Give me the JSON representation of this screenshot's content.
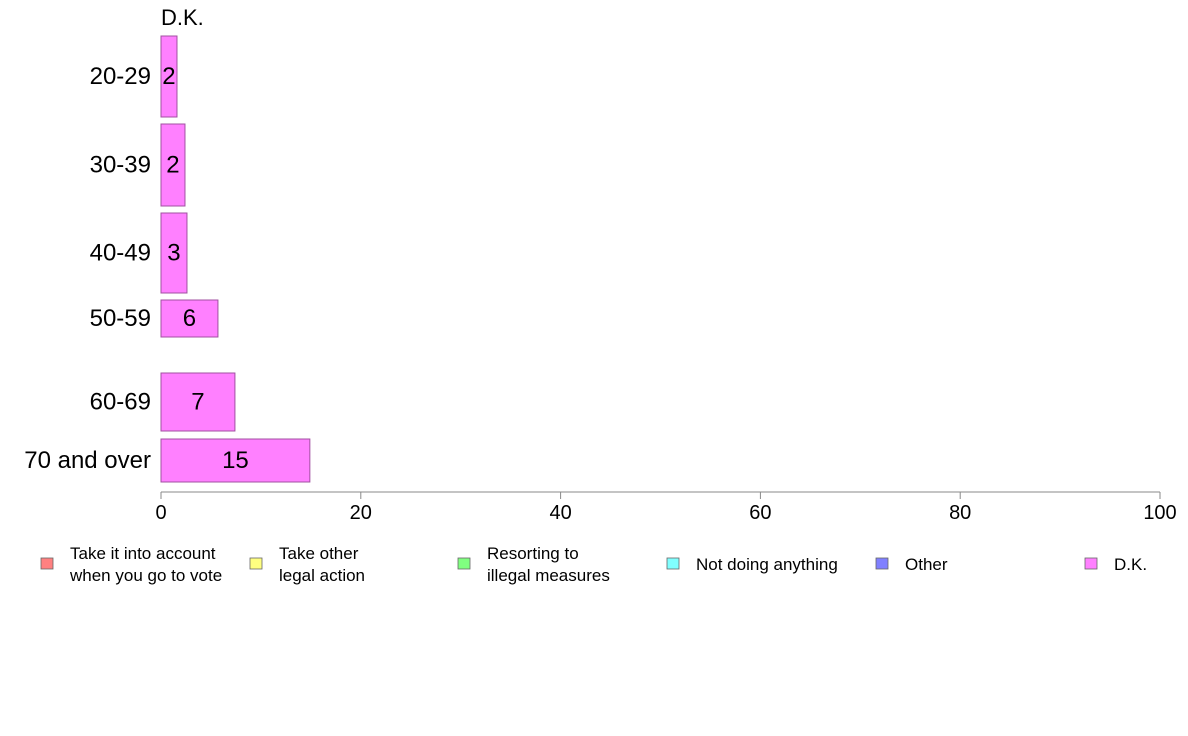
{
  "chart_data": {
    "type": "bar",
    "orientation": "horizontal",
    "title": "D.K.",
    "categories": [
      "20-29",
      "30-39",
      "40-49",
      "50-59",
      "60-69",
      "70 and over"
    ],
    "series": [
      {
        "name": "D.K.",
        "values": [
          1.6,
          2.4,
          2.6,
          5.7,
          7.4,
          14.9
        ],
        "labels": [
          "2",
          "2",
          "3",
          "6",
          "7",
          "15"
        ],
        "color": "#ff80ff"
      }
    ],
    "xlim": [
      0,
      100
    ],
    "x_ticks": [
      "0",
      "20",
      "40",
      "60",
      "80",
      "100"
    ],
    "grid": false,
    "legend": {
      "position": "bottom",
      "items": [
        {
          "lines": [
            "Take it into account",
            "when you go to vote"
          ],
          "color": "#ff8080"
        },
        {
          "lines": [
            "Take other",
            "legal action"
          ],
          "color": "#ffff80"
        },
        {
          "lines": [
            "Resorting to",
            "illegal measures"
          ],
          "color": "#80ff80"
        },
        {
          "lines": [
            "Not doing anything"
          ],
          "color": "#80ffff"
        },
        {
          "lines": [
            "Other"
          ],
          "color": "#8080ff"
        },
        {
          "lines": [
            "D.K."
          ],
          "color": "#ff80ff"
        }
      ]
    },
    "bar_border_color": "#a050a0",
    "axis_color": "#888888"
  }
}
